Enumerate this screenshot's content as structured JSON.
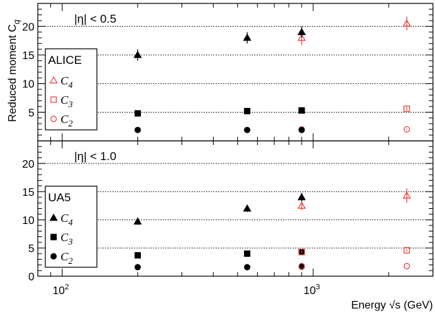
{
  "chart_data": {
    "type": "scatter",
    "xlabel": "Energy √s (GeV)",
    "ylabel": "Reduced moment C_q",
    "x_scale": "log",
    "xlim": [
      80,
      3000
    ],
    "x_ticks": [
      {
        "value": 100,
        "label": "10",
        "exp": "2"
      },
      {
        "value": 1000,
        "label": "10",
        "exp": "3"
      }
    ],
    "panels": [
      {
        "id": "top",
        "annotation": "|η| < 0.5",
        "ylim": [
          0,
          24
        ],
        "y_ticks": [
          5,
          10,
          15,
          20
        ],
        "gridlines": [
          5,
          10,
          15,
          20
        ],
        "legend": {
          "title": "ALICE",
          "entries": [
            {
              "q": "4",
              "marker": "triangle-open",
              "color": "#e8403c"
            },
            {
              "q": "3",
              "marker": "square-open",
              "color": "#e8403c"
            },
            {
              "q": "2",
              "marker": "circle-open",
              "color": "#e8403c"
            }
          ]
        },
        "series": [
          {
            "name": "C_4",
            "marker": "triangle-open",
            "color": "#e8403c",
            "points": [
              [
                900,
                18.0,
                1.3
              ],
              [
                2360,
                20.5,
                1.2
              ]
            ]
          },
          {
            "name": "C_3",
            "marker": "square-open",
            "color": "#e8403c",
            "points": [
              [
                900,
                5.3,
                0.3
              ],
              [
                2360,
                5.6,
                0.3
              ]
            ]
          },
          {
            "name": "C_2",
            "marker": "circle-open",
            "color": "#e8403c",
            "points": [
              [
                900,
                2.0,
                0.1
              ],
              [
                2360,
                2.0,
                0.1
              ]
            ]
          },
          {
            "name": "C_4",
            "marker": "triangle-filled",
            "color": "#000000",
            "points": [
              [
                200,
                15.0,
                1.0
              ],
              [
                546,
                18.0,
                1.0
              ],
              [
                900,
                19.0,
                1.0
              ]
            ]
          },
          {
            "name": "C_3",
            "marker": "square-filled",
            "color": "#000000",
            "points": [
              [
                200,
                4.8,
                0.2
              ],
              [
                546,
                5.2,
                0.2
              ],
              [
                900,
                5.3,
                0.2
              ]
            ]
          },
          {
            "name": "C_2",
            "marker": "circle-filled",
            "color": "#000000",
            "points": [
              [
                200,
                1.9,
                0.05
              ],
              [
                546,
                1.9,
                0.05
              ],
              [
                900,
                1.9,
                0.05
              ]
            ]
          }
        ]
      },
      {
        "id": "bottom",
        "annotation": "|η| < 1.0",
        "ylim": [
          0,
          24
        ],
        "y_ticks": [
          0,
          5,
          10,
          15,
          20
        ],
        "gridlines": [
          5,
          10,
          15,
          20
        ],
        "legend": {
          "title": "UA5",
          "entries": [
            {
              "q": "4",
              "marker": "triangle-filled",
              "color": "#000000"
            },
            {
              "q": "3",
              "marker": "square-filled",
              "color": "#000000"
            },
            {
              "q": "2",
              "marker": "circle-filled",
              "color": "#000000"
            }
          ]
        },
        "series": [
          {
            "name": "C_4",
            "marker": "triangle-filled",
            "color": "#000000",
            "points": [
              [
                200,
                9.7,
                0.6
              ],
              [
                546,
                12.0,
                0.6
              ],
              [
                900,
                14.0,
                0.8
              ]
            ]
          },
          {
            "name": "C_3",
            "marker": "square-filled",
            "color": "#000000",
            "points": [
              [
                200,
                3.7,
                0.2
              ],
              [
                546,
                4.0,
                0.2
              ],
              [
                900,
                4.3,
                0.2
              ]
            ]
          },
          {
            "name": "C_2",
            "marker": "circle-filled",
            "color": "#000000",
            "points": [
              [
                200,
                1.6,
                0.05
              ],
              [
                546,
                1.6,
                0.05
              ],
              [
                900,
                1.7,
                0.05
              ]
            ]
          },
          {
            "name": "C_4",
            "marker": "triangle-open",
            "color": "#e8403c",
            "points": [
              [
                900,
                12.5,
                0.8
              ],
              [
                2360,
                14.3,
                1.3
              ]
            ]
          },
          {
            "name": "C_3",
            "marker": "square-open",
            "color": "#e8403c",
            "points": [
              [
                900,
                4.3,
                0.2
              ],
              [
                2360,
                4.6,
                0.2
              ]
            ]
          },
          {
            "name": "C_2",
            "marker": "circle-open",
            "color": "#e8403c",
            "points": [
              [
                900,
                1.8,
                0.05
              ],
              [
                2360,
                1.8,
                0.05
              ]
            ]
          }
        ]
      }
    ]
  }
}
